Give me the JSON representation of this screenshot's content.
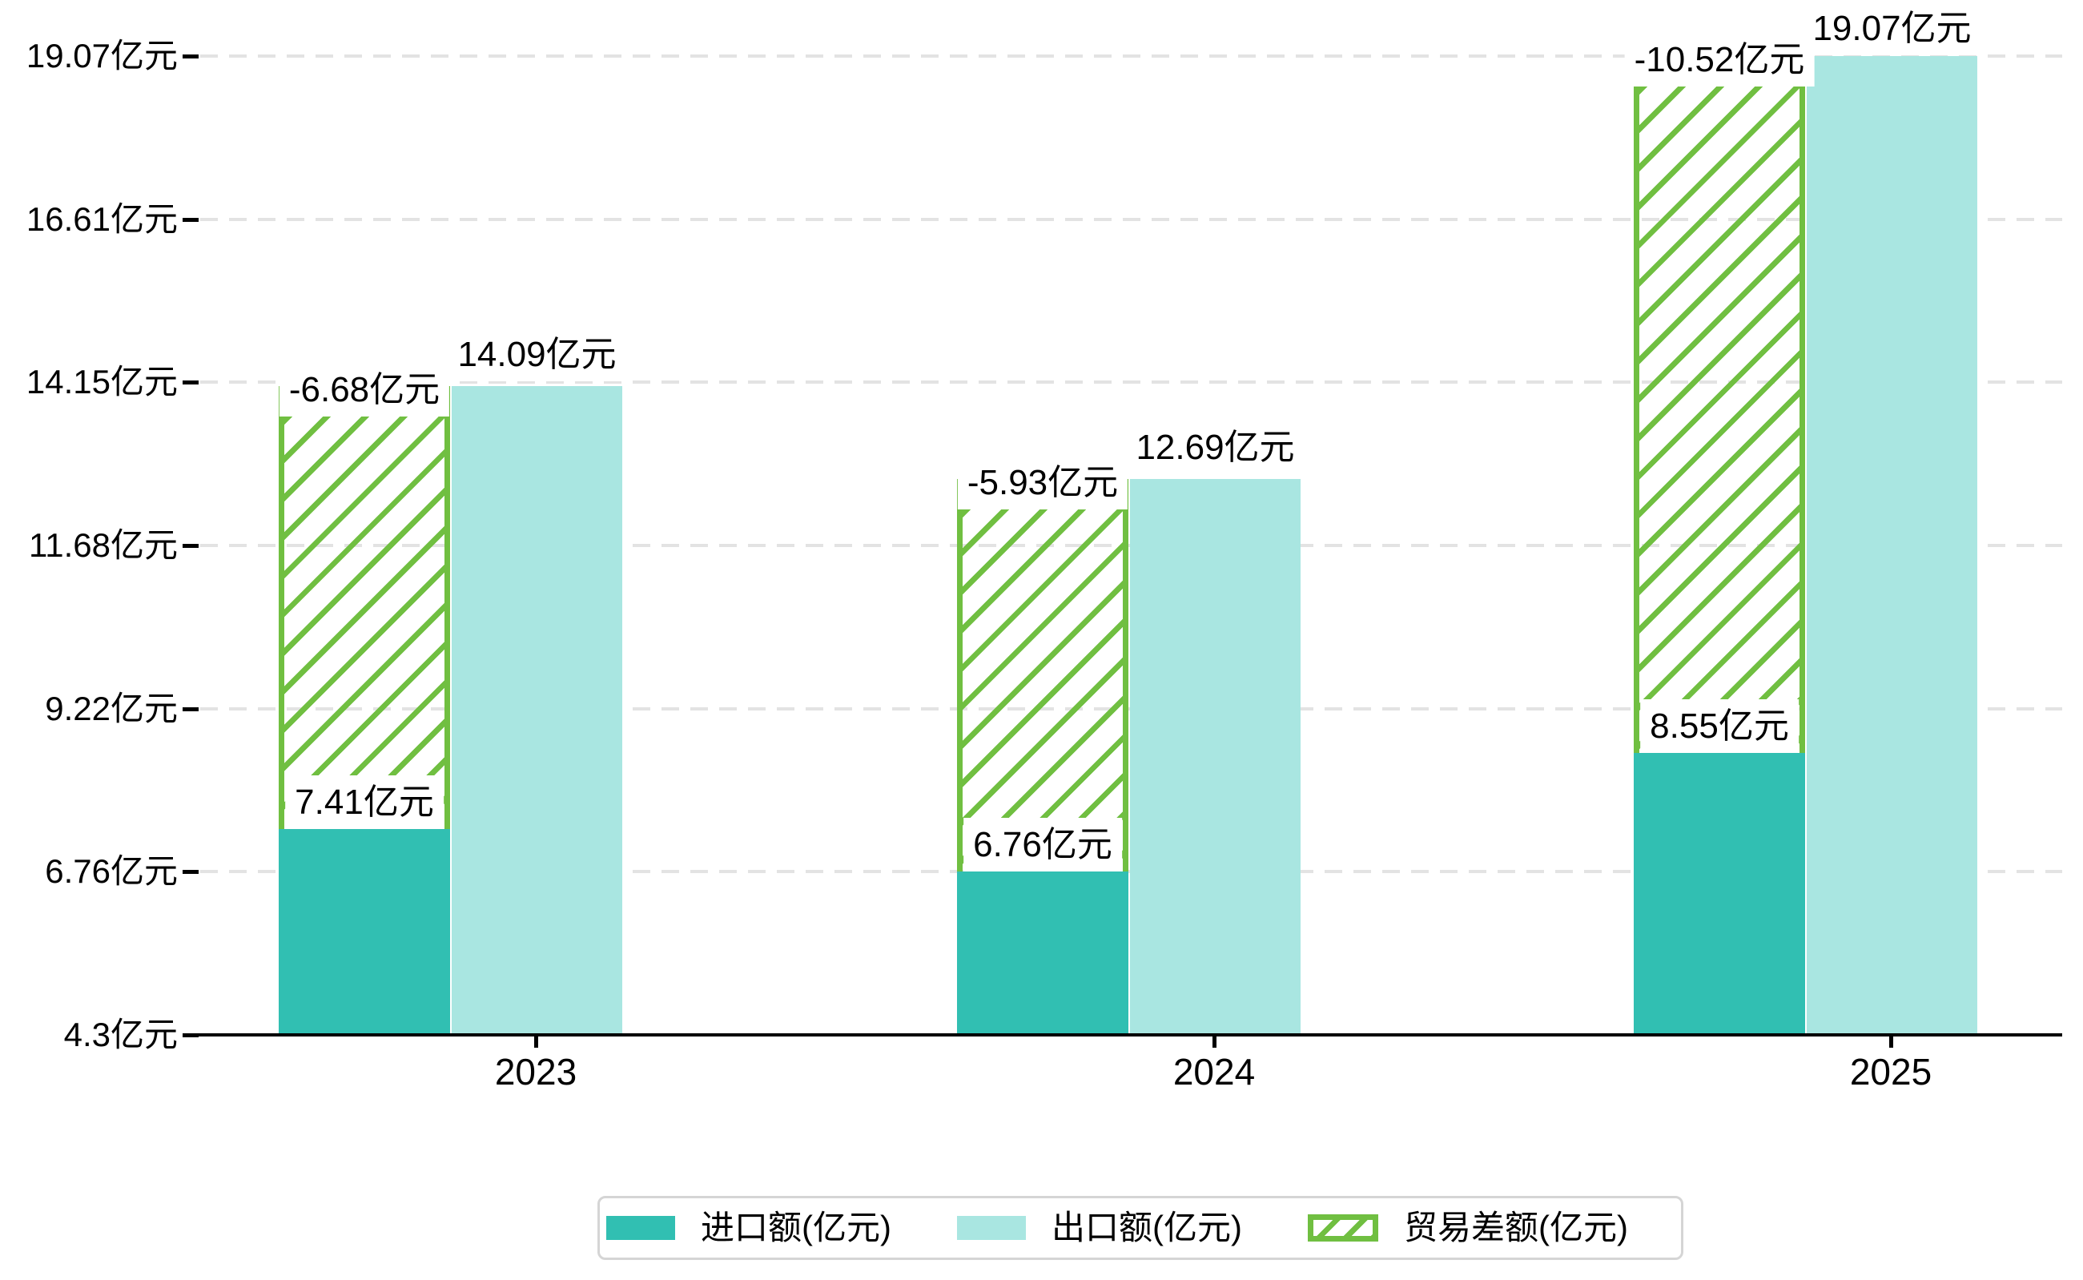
{
  "chart_data": {
    "type": "bar",
    "categories": [
      "2023",
      "2024",
      "2025"
    ],
    "unit": "亿元",
    "series": [
      {
        "name": "进口额(亿元)",
        "values": [
          7.41,
          6.76,
          8.55
        ],
        "labels": [
          "7.41亿元",
          "6.76亿元",
          "8.55亿元"
        ],
        "color": "#31BFB2",
        "style": "solid"
      },
      {
        "name": "出口额(亿元)",
        "values": [
          14.09,
          12.69,
          19.07
        ],
        "labels": [
          "14.09亿元",
          "12.69亿元",
          "19.07亿元"
        ],
        "color": "#A9E6E1",
        "style": "solid"
      },
      {
        "name": "贸易差额(亿元)",
        "values": [
          -6.68,
          -5.93,
          -10.52
        ],
        "labels": [
          "-6.68亿元",
          "-5.93亿元",
          "-10.52亿元"
        ],
        "color": "#70BF41",
        "style": "hatched"
      }
    ],
    "y_axis": {
      "min": 4.3,
      "max": 19.07,
      "tick_values": [
        4.3,
        6.76,
        9.22,
        11.68,
        14.15,
        16.61,
        19.07
      ],
      "tick_labels": [
        "4.3亿元",
        "6.76亿元",
        "9.22亿元",
        "11.68亿元",
        "14.15亿元",
        "16.61亿元",
        "19.07亿元"
      ]
    },
    "x_axis": {
      "tick_labels": [
        "2023",
        "2024",
        "2025"
      ]
    },
    "grid": true,
    "legend_position": "bottom"
  },
  "legend": {
    "items": [
      {
        "label": "进口额(亿元)"
      },
      {
        "label": "出口额(亿元)"
      },
      {
        "label": "贸易差额(亿元)"
      }
    ]
  },
  "colors": {
    "import_bar": "#31BFB2",
    "export_bar": "#A9E6E1",
    "balance_green": "#70BF41",
    "gridline": "#E3E3E3",
    "axis": "#000000",
    "legend_border": "#D5D5D5",
    "label_text": "#000000",
    "background": "#FFFFFF"
  }
}
